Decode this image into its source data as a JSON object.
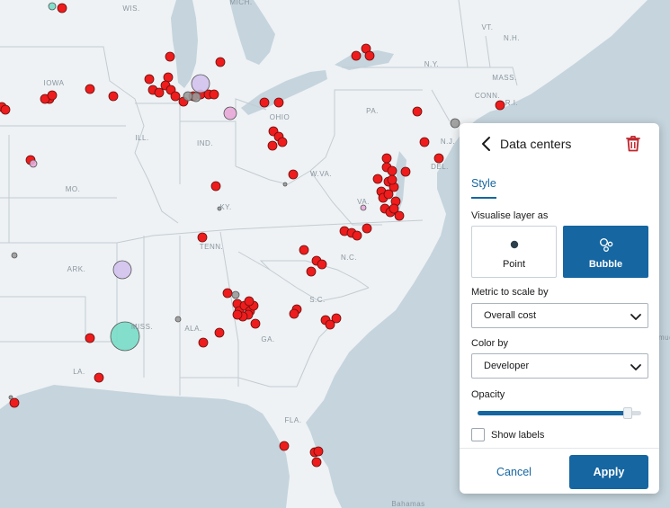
{
  "map": {
    "colors": {
      "land": "#eef2f4",
      "water": "#c5d4dd",
      "border": "#c3ccd3",
      "state_label": "#8a96a0",
      "point_fill": "#ee1c1c",
      "point_stroke": "#6b0f0f",
      "bubble_lavender": "#d3c2ee",
      "bubble_pink": "#e8a7d8",
      "bubble_teal": "#77ddc8",
      "bubble_gray": "#9a9a9a"
    },
    "labels": [
      "WIS.",
      "MICH.",
      "VT.",
      "N.H.",
      "N.Y.",
      "MASS.",
      "CONN.",
      "R.I.",
      "IOWA",
      "PA.",
      "ILL.",
      "IND.",
      "OHIO",
      "N.J.",
      "DEL.",
      "W.VA.",
      "MO.",
      "KY.",
      "VA.",
      "TENN.",
      "N.C.",
      "ARK.",
      "S.C.",
      "MISS.",
      "ALA.",
      "GA.",
      "LA.",
      "FLA.",
      "Bahamas",
      "Bermuda"
    ]
  },
  "panel": {
    "title": "Data centers",
    "back_icon": "chevron-left-icon",
    "delete_icon": "trash-icon",
    "tab_style": "Style",
    "visualise_label": "Visualise layer as",
    "option_point": "Point",
    "option_bubble": "Bubble",
    "selected_visualisation": "Bubble",
    "metric_label": "Metric to scale by",
    "metric_value": "Overall cost",
    "color_label": "Color by",
    "color_value": "Developer",
    "opacity_label": "Opacity",
    "opacity_value": 0.92,
    "show_labels_label": "Show labels",
    "show_labels_checked": false,
    "cancel_label": "Cancel",
    "apply_label": "Apply",
    "accent_color": "#1566a1"
  }
}
